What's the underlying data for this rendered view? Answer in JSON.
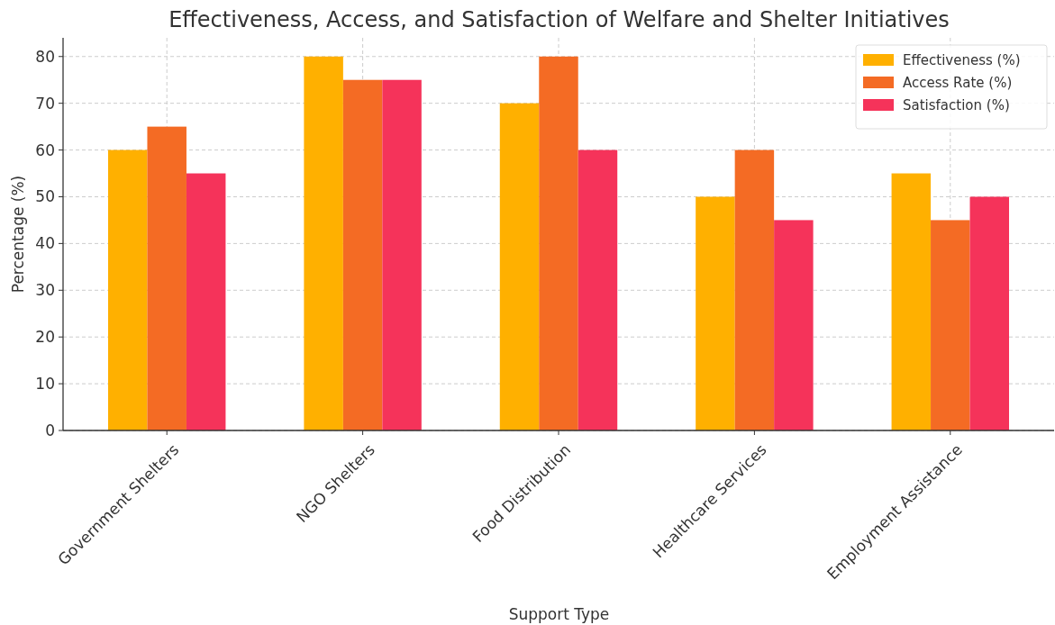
{
  "chart_data": {
    "type": "bar",
    "title": "Effectiveness, Access, and Satisfaction of Welfare and Shelter Initiatives",
    "xlabel": "Support Type",
    "ylabel": "Percentage (%)",
    "categories": [
      "Government Shelters",
      "NGO Shelters",
      "Food Distribution",
      "Healthcare Services",
      "Employment Assistance"
    ],
    "series": [
      {
        "name": "Effectiveness (%)",
        "color": "#ffb000",
        "values": [
          60,
          80,
          70,
          50,
          55
        ]
      },
      {
        "name": "Access Rate (%)",
        "color": "#f46b24",
        "values": [
          65,
          75,
          80,
          60,
          45
        ]
      },
      {
        "name": "Satisfaction (%)",
        "color": "#f5335a",
        "values": [
          55,
          75,
          60,
          45,
          50
        ]
      }
    ],
    "ylim": [
      0,
      84
    ],
    "yticks": [
      0,
      10,
      20,
      30,
      40,
      50,
      60,
      70,
      80
    ],
    "grid": true,
    "legend": "top right"
  }
}
